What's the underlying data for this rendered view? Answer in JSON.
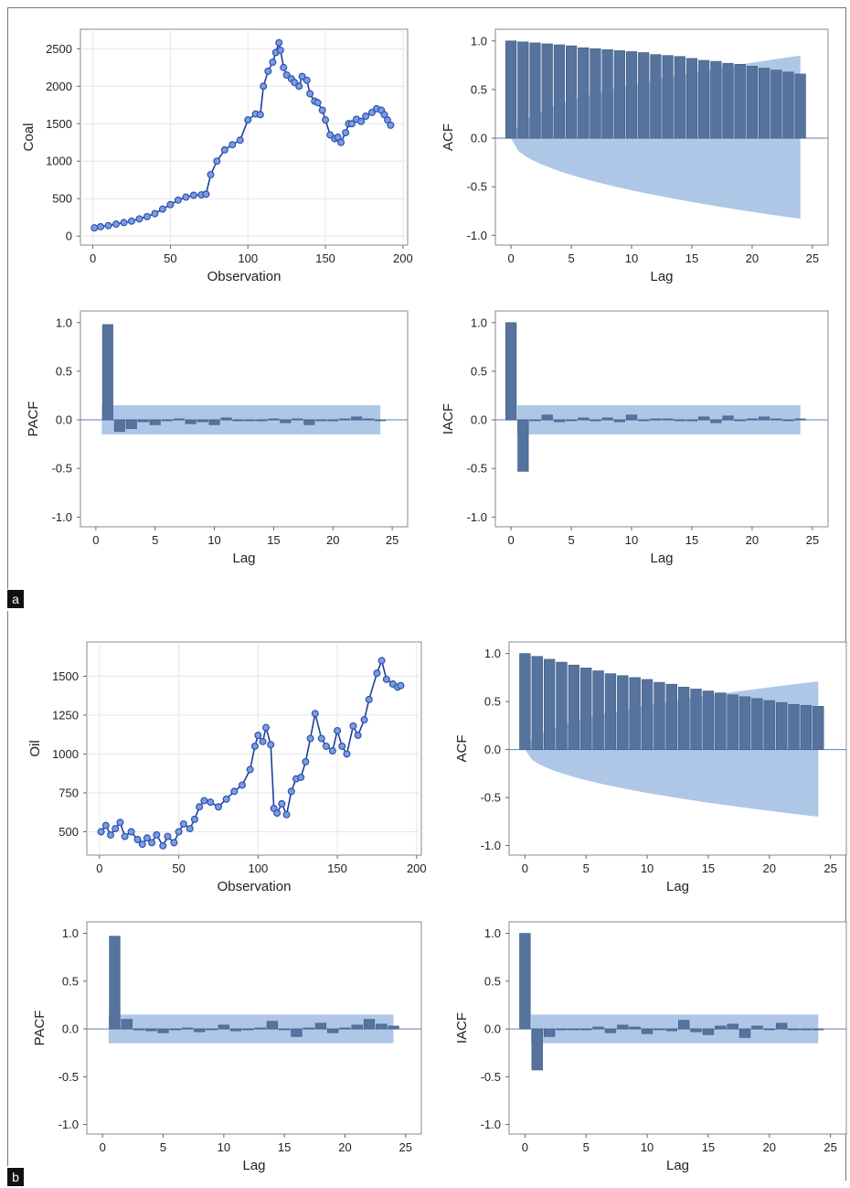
{
  "figure": {
    "panel_labels": [
      "a",
      "b"
    ]
  },
  "colors": {
    "bar": "#56739e",
    "band": "#8fb2dd",
    "series": "#1f3f95",
    "marker": "#2a52b0",
    "frame": "#8a8a8a"
  },
  "chart_data": [
    {
      "id": "coal-series",
      "type": "line",
      "markers": "circle",
      "xlabel": "Observation",
      "ylabel": "Coal",
      "xlim": [
        -8,
        203
      ],
      "ylim": [
        -120,
        2760
      ],
      "xticks": [
        0,
        50,
        100,
        150,
        200
      ],
      "yticks": [
        0,
        500,
        1000,
        1500,
        2000,
        2500
      ],
      "grid": true,
      "x": [
        1,
        5,
        10,
        15,
        20,
        25,
        30,
        35,
        40,
        45,
        50,
        55,
        60,
        65,
        70,
        73,
        76,
        80,
        85,
        90,
        95,
        100,
        105,
        108,
        110,
        113,
        116,
        118,
        120,
        121,
        123,
        125,
        128,
        130,
        133,
        135,
        138,
        140,
        143,
        145,
        148,
        150,
        153,
        156,
        158,
        160,
        163,
        165,
        167,
        170,
        173,
        176,
        180,
        183,
        186,
        188,
        190,
        192
      ],
      "y": [
        110,
        125,
        140,
        160,
        180,
        200,
        230,
        260,
        300,
        360,
        420,
        480,
        520,
        545,
        550,
        560,
        820,
        1000,
        1150,
        1220,
        1280,
        1550,
        1630,
        1620,
        2000,
        2200,
        2320,
        2450,
        2580,
        2480,
        2250,
        2150,
        2100,
        2050,
        2000,
        2130,
        2080,
        1900,
        1800,
        1780,
        1680,
        1550,
        1350,
        1300,
        1320,
        1250,
        1380,
        1500,
        1500,
        1560,
        1530,
        1600,
        1650,
        1700,
        1680,
        1620,
        1550,
        1480
      ]
    },
    {
      "id": "coal-acf",
      "type": "bar",
      "xlabel": "Lag",
      "ylabel": "ACF",
      "xlim": [
        -1.3,
        26.3
      ],
      "ylim": [
        -1.1,
        1.12
      ],
      "xticks": [
        0,
        5,
        10,
        15,
        20,
        25
      ],
      "yticks": [
        1.0,
        0.5,
        0.0,
        -0.5,
        -1.0
      ],
      "lags": [
        0,
        1,
        2,
        3,
        4,
        5,
        6,
        7,
        8,
        9,
        10,
        11,
        12,
        13,
        14,
        15,
        16,
        17,
        18,
        19,
        20,
        21,
        22,
        23,
        24
      ],
      "values": [
        1.0,
        0.99,
        0.98,
        0.97,
        0.96,
        0.95,
        0.93,
        0.92,
        0.91,
        0.9,
        0.89,
        0.88,
        0.86,
        0.85,
        0.84,
        0.82,
        0.8,
        0.79,
        0.77,
        0.76,
        0.74,
        0.72,
        0.7,
        0.68,
        0.66
      ],
      "band": {
        "from_lag": 0,
        "to_lag": 24,
        "upper_start": 0.0,
        "upper_end": 0.85,
        "lower_start": 0.0,
        "lower_end": -0.83
      }
    },
    {
      "id": "coal-pacf",
      "type": "bar",
      "xlabel": "Lag",
      "ylabel": "PACF",
      "xlim": [
        -1.3,
        26.3
      ],
      "ylim": [
        -1.1,
        1.12
      ],
      "xticks": [
        0,
        5,
        10,
        15,
        20,
        25
      ],
      "yticks": [
        1.0,
        0.5,
        0.0,
        -0.5,
        -1.0
      ],
      "lags": [
        1,
        2,
        3,
        4,
        5,
        6,
        7,
        8,
        9,
        10,
        11,
        12,
        13,
        14,
        15,
        16,
        17,
        18,
        19,
        20,
        21,
        22,
        23,
        24
      ],
      "values": [
        0.98,
        -0.12,
        -0.09,
        -0.02,
        -0.05,
        -0.01,
        0.01,
        -0.04,
        -0.02,
        -0.05,
        0.02,
        -0.01,
        0.0,
        -0.01,
        0.01,
        -0.03,
        0.01,
        -0.05,
        0.0,
        -0.01,
        0.01,
        0.03,
        0.01,
        0.0
      ],
      "band": {
        "from_lag": 1,
        "to_lag": 24,
        "upper_start": 0.15,
        "upper_end": 0.15,
        "lower_start": -0.15,
        "lower_end": -0.15
      }
    },
    {
      "id": "coal-iacf",
      "type": "bar",
      "xlabel": "Lag",
      "ylabel": "IACF",
      "xlim": [
        -1.3,
        26.3
      ],
      "ylim": [
        -1.1,
        1.12
      ],
      "xticks": [
        0,
        5,
        10,
        15,
        20,
        25
      ],
      "yticks": [
        1.0,
        0.5,
        0.0,
        -0.5,
        -1.0
      ],
      "lags": [
        0,
        1,
        2,
        3,
        4,
        5,
        6,
        7,
        8,
        9,
        10,
        11,
        12,
        13,
        14,
        15,
        16,
        17,
        18,
        19,
        20,
        21,
        22,
        23,
        24
      ],
      "values": [
        1.0,
        -0.53,
        0.0,
        0.05,
        -0.02,
        0.0,
        0.02,
        -0.01,
        0.02,
        -0.02,
        0.05,
        0.0,
        0.01,
        0.01,
        0.0,
        -0.01,
        0.03,
        -0.03,
        0.04,
        0.0,
        0.01,
        0.03,
        0.01,
        0.0,
        0.01
      ],
      "band": {
        "from_lag": 1,
        "to_lag": 24,
        "upper_start": 0.15,
        "upper_end": 0.15,
        "lower_start": -0.15,
        "lower_end": -0.15
      }
    },
    {
      "id": "oil-series",
      "type": "line",
      "markers": "circle",
      "xlabel": "Observation",
      "ylabel": "Oil",
      "xlim": [
        -8,
        203
      ],
      "ylim": [
        350,
        1720
      ],
      "xticks": [
        0,
        50,
        100,
        150,
        200
      ],
      "yticks": [
        500,
        750,
        1000,
        1250,
        1500
      ],
      "grid": true,
      "x": [
        1,
        4,
        7,
        10,
        13,
        16,
        20,
        24,
        27,
        30,
        33,
        36,
        40,
        43,
        47,
        50,
        53,
        57,
        60,
        63,
        66,
        70,
        75,
        80,
        85,
        90,
        95,
        98,
        100,
        103,
        105,
        108,
        110,
        112,
        115,
        118,
        121,
        124,
        127,
        130,
        133,
        136,
        140,
        143,
        147,
        150,
        153,
        156,
        160,
        163,
        167,
        170,
        175,
        178,
        181,
        185,
        188,
        190
      ],
      "y": [
        500,
        540,
        480,
        520,
        560,
        470,
        500,
        450,
        420,
        460,
        430,
        480,
        410,
        470,
        430,
        500,
        550,
        520,
        580,
        660,
        700,
        690,
        660,
        710,
        760,
        800,
        900,
        1050,
        1120,
        1080,
        1170,
        1060,
        650,
        620,
        680,
        610,
        760,
        840,
        850,
        950,
        1100,
        1260,
        1100,
        1050,
        1020,
        1150,
        1050,
        1000,
        1180,
        1120,
        1220,
        1350,
        1520,
        1600,
        1480,
        1450,
        1430,
        1440
      ]
    },
    {
      "id": "oil-acf",
      "type": "bar",
      "xlabel": "Lag",
      "ylabel": "ACF",
      "xlim": [
        -1.3,
        26.3
      ],
      "ylim": [
        -1.1,
        1.12
      ],
      "xticks": [
        0,
        5,
        10,
        15,
        20,
        25
      ],
      "yticks": [
        1.0,
        0.5,
        0.0,
        -0.5,
        -1.0
      ],
      "lags": [
        0,
        1,
        2,
        3,
        4,
        5,
        6,
        7,
        8,
        9,
        10,
        11,
        12,
        13,
        14,
        15,
        16,
        17,
        18,
        19,
        20,
        21,
        22,
        23,
        24
      ],
      "values": [
        1.0,
        0.97,
        0.94,
        0.91,
        0.88,
        0.85,
        0.82,
        0.79,
        0.77,
        0.75,
        0.73,
        0.7,
        0.68,
        0.65,
        0.63,
        0.61,
        0.59,
        0.57,
        0.55,
        0.53,
        0.51,
        0.49,
        0.47,
        0.46,
        0.45
      ],
      "band": {
        "from_lag": 0,
        "to_lag": 24,
        "upper_start": 0.0,
        "upper_end": 0.71,
        "lower_start": 0.0,
        "lower_end": -0.7
      }
    },
    {
      "id": "oil-pacf",
      "type": "bar",
      "xlabel": "Lag",
      "ylabel": "PACF",
      "xlim": [
        -1.3,
        26.3
      ],
      "ylim": [
        -1.1,
        1.12
      ],
      "xticks": [
        0,
        5,
        10,
        15,
        20,
        25
      ],
      "yticks": [
        1.0,
        0.5,
        0.0,
        -0.5,
        -1.0
      ],
      "lags": [
        1,
        2,
        3,
        4,
        5,
        6,
        7,
        8,
        9,
        10,
        11,
        12,
        13,
        14,
        15,
        16,
        17,
        18,
        19,
        20,
        21,
        22,
        23,
        24
      ],
      "values": [
        0.97,
        0.1,
        -0.01,
        -0.02,
        -0.04,
        0.0,
        0.01,
        -0.03,
        0.0,
        0.04,
        -0.02,
        0.0,
        0.01,
        0.08,
        0.0,
        -0.08,
        0.01,
        0.06,
        -0.04,
        0.01,
        0.04,
        0.1,
        0.05,
        0.03
      ],
      "band": {
        "from_lag": 1,
        "to_lag": 24,
        "upper_start": 0.15,
        "upper_end": 0.15,
        "lower_start": -0.15,
        "lower_end": -0.15
      }
    },
    {
      "id": "oil-iacf",
      "type": "bar",
      "xlabel": "Lag",
      "ylabel": "IACF",
      "xlim": [
        -1.3,
        26.3
      ],
      "ylim": [
        -1.1,
        1.12
      ],
      "xticks": [
        0,
        5,
        10,
        15,
        20,
        25
      ],
      "yticks": [
        1.0,
        0.5,
        0.0,
        -0.5,
        -1.0
      ],
      "lags": [
        0,
        1,
        2,
        3,
        4,
        5,
        6,
        7,
        8,
        9,
        10,
        11,
        12,
        13,
        14,
        15,
        16,
        17,
        18,
        19,
        20,
        21,
        22,
        23,
        24
      ],
      "values": [
        1.0,
        -0.43,
        -0.08,
        0.0,
        0.0,
        0.0,
        0.02,
        -0.04,
        0.04,
        0.02,
        -0.05,
        0.0,
        -0.02,
        0.09,
        -0.03,
        -0.06,
        0.03,
        0.05,
        -0.09,
        0.03,
        0.0,
        0.06,
        0.0,
        -0.01,
        0.0
      ],
      "band": {
        "from_lag": 1,
        "to_lag": 24,
        "upper_start": 0.15,
        "upper_end": 0.15,
        "lower_start": -0.15,
        "lower_end": -0.15
      }
    }
  ]
}
